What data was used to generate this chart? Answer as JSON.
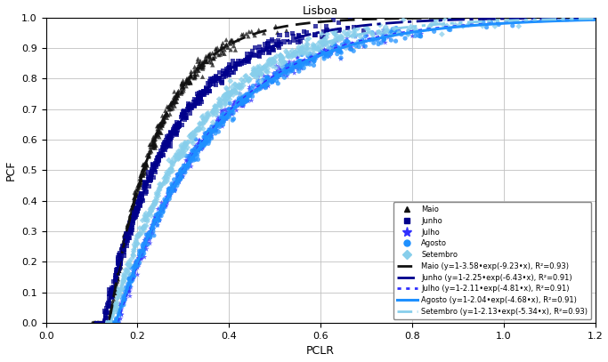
{
  "title": "Lisboa",
  "xlabel": "PCLR",
  "ylabel": "PCF",
  "xlim": [
    0,
    1.2
  ],
  "ylim": [
    0,
    1.0
  ],
  "xticks": [
    0,
    0.2,
    0.4,
    0.6,
    0.8,
    1.0,
    1.2
  ],
  "yticks": [
    0,
    0.1,
    0.2,
    0.3,
    0.4,
    0.5,
    0.6,
    0.7,
    0.8,
    0.9,
    1.0
  ],
  "months": [
    "Maio",
    "Junho",
    "Julho",
    "Agosto",
    "Setembro"
  ],
  "scatter_colors": [
    "#111111",
    "#00008B",
    "#3030FF",
    "#1E90FF",
    "#87CEEB"
  ],
  "scatter_markers": [
    "^",
    "s",
    "*",
    "o",
    "D"
  ],
  "scatter_sizes": [
    14,
    14,
    22,
    14,
    12
  ],
  "fit_colors": [
    "#111111",
    "#00008B",
    "#3030FF",
    "#1E90FF",
    "#87CEEB"
  ],
  "fit_params": [
    {
      "a": 3.58,
      "b": 9.23
    },
    {
      "a": 2.25,
      "b": 6.43
    },
    {
      "a": 2.11,
      "b": 4.81
    },
    {
      "a": 2.04,
      "b": 4.68
    },
    {
      "a": 2.13,
      "b": 5.34
    }
  ],
  "fit_labels": [
    "Maio (y=1-3.58•exp(-9.23•x), R²=0.93)",
    "Junho (y=1-2.25•exp(-6.43•x), R²=0.91)",
    "Julho (y=1-2.11•exp(-4.81•x), R²=0.91)",
    "Agosto (y=1-2.04•exp(-4.68•x), R²=0.91)",
    "Setembro (y=1-2.13•exp(-5.34•x), R²=0.93)"
  ],
  "n_scatter_points": 500,
  "seed": 42,
  "background_color": "#ffffff",
  "grid_color": "#c0c0c0",
  "pclr_ranges": [
    [
      0.1,
      0.55
    ],
    [
      0.11,
      0.75
    ],
    [
      0.13,
      0.95
    ],
    [
      0.14,
      1.1
    ],
    [
      0.13,
      1.15
    ]
  ]
}
